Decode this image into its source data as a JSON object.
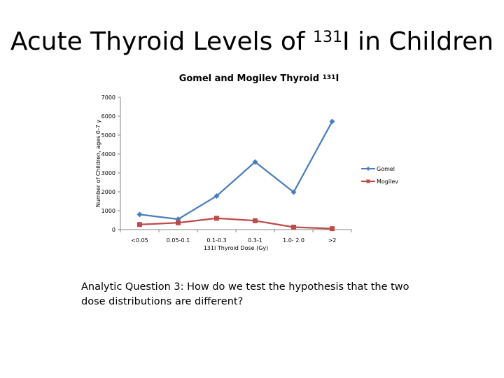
{
  "slide": {
    "title_main": "Acute Thyroid Levels of ",
    "title_sup": "131",
    "title_end": "I in Children",
    "question": "Analytic Question 3:  How do we test the hypothesis that the two dose distributions are different?"
  },
  "chart_data": {
    "type": "line",
    "title_main": "Gomel and Mogilev Thyroid ",
    "title_sup": "131",
    "title_end": "I",
    "xlabel": "131I Thyroid Dose (Gy)",
    "ylabel": "Number of Children, ages 0-7 y",
    "categories": [
      "<0.05",
      "0.05-0.1",
      "0.1-0.3",
      "0.3-1",
      "1.0- 2.0",
      ">2"
    ],
    "yticks": [
      "0",
      "1000",
      "2000",
      "3000",
      "4000",
      "5000",
      "6000",
      "7000"
    ],
    "ylim": [
      0,
      7000
    ],
    "grid": false,
    "legend_position": "right",
    "series": [
      {
        "name": "Gomel",
        "color": "#4a7ebb",
        "marker": "diamond",
        "values": [
          800,
          550,
          1780,
          3580,
          1980,
          5720
        ]
      },
      {
        "name": "Mogilev",
        "color": "#be4b48",
        "marker": "square",
        "values": [
          270,
          360,
          600,
          470,
          130,
          50
        ]
      }
    ]
  }
}
